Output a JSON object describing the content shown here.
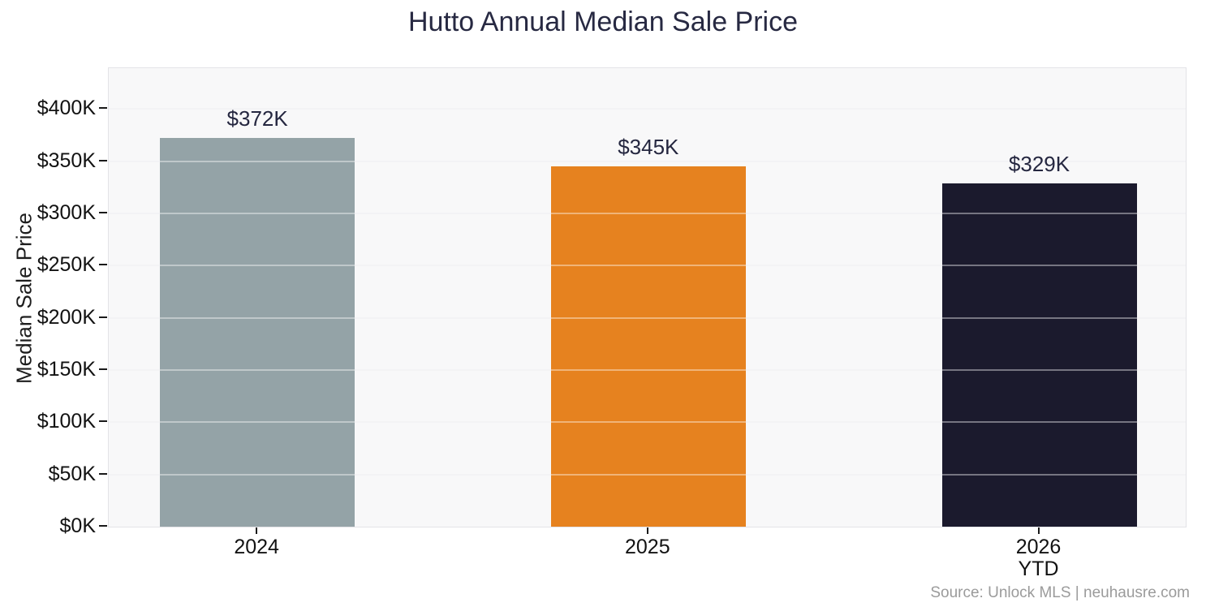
{
  "chart_data": {
    "type": "bar",
    "title": "Hutto Annual Median Sale Price",
    "xlabel": "",
    "ylabel": "Median Sale Price",
    "categories": [
      [
        "2024"
      ],
      [
        "2025"
      ],
      [
        "2026",
        "YTD"
      ]
    ],
    "values": [
      372000,
      345000,
      329000
    ],
    "values_k": [
      372,
      345,
      329
    ],
    "bar_labels": [
      "$372K",
      "$345K",
      "$329K"
    ],
    "bar_colors": [
      "#94a3a7",
      "#e6821f",
      "#1b1a2d"
    ],
    "ytick_values_k": [
      0,
      50,
      100,
      150,
      200,
      250,
      300,
      350,
      400
    ],
    "ytick_labels": [
      "$0K",
      "$50K",
      "$100K",
      "$150K",
      "$200K",
      "$250K",
      "$300K",
      "$350K",
      "$400K"
    ],
    "ylim_k": [
      0,
      439
    ],
    "grid": true,
    "legend": "none",
    "source": "Source: Unlock MLS | neuhausre.com"
  }
}
